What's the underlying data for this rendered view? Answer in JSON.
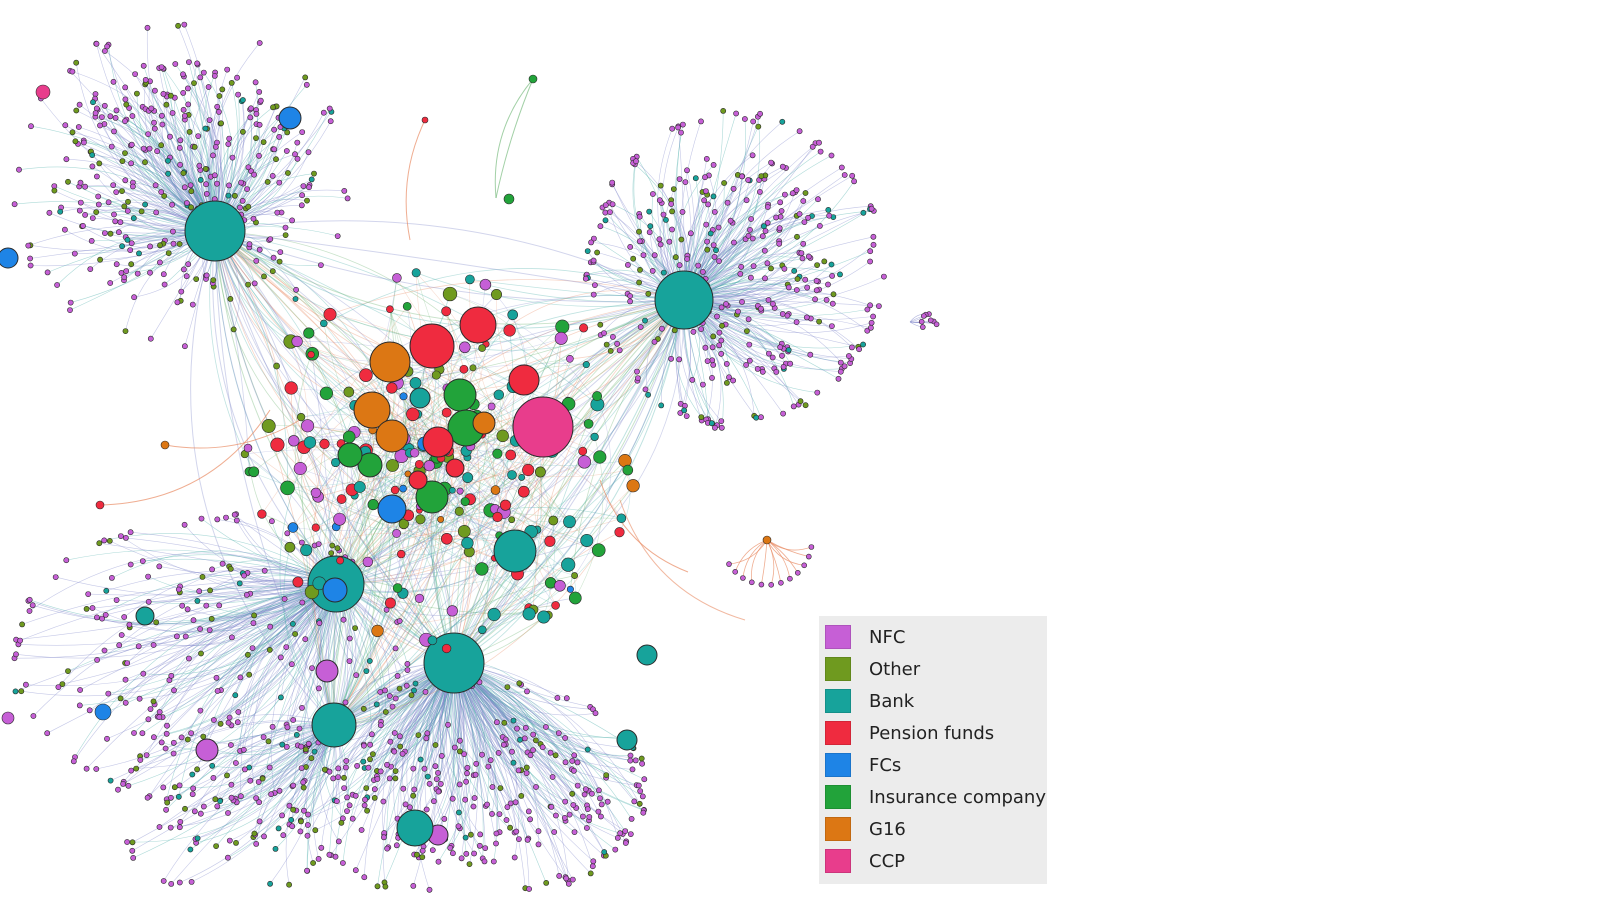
{
  "legend": {
    "items": [
      {
        "label": "NFC",
        "color": "#c65fd6",
        "key": "nfc"
      },
      {
        "label": "Other",
        "color": "#6f9a1f",
        "key": "other"
      },
      {
        "label": "Bank",
        "color": "#17a39b",
        "key": "bank"
      },
      {
        "label": "Pension funds",
        "color": "#ef2b3f",
        "key": "pension"
      },
      {
        "label": "FCs",
        "color": "#1e84e6",
        "key": "fcs"
      },
      {
        "label": "Insurance company",
        "color": "#22a33a",
        "key": "insurance"
      },
      {
        "label": "G16",
        "color": "#dc7714",
        "key": "g16"
      },
      {
        "label": "CCP",
        "color": "#e83d8c",
        "key": "ccp"
      }
    ]
  },
  "diagram": {
    "type": "network-graph",
    "node_colors": {
      "nfc": "#c65fd6",
      "other": "#6f9a1f",
      "bank": "#17a39b",
      "pension": "#ef2b3f",
      "fcs": "#1e84e6",
      "insurance": "#22a33a",
      "g16": "#dc7714",
      "ccp": "#e83d8c"
    },
    "edge_colors": [
      "#7f86c9",
      "#4aaea8",
      "#64b06a",
      "#e88a62"
    ]
  }
}
